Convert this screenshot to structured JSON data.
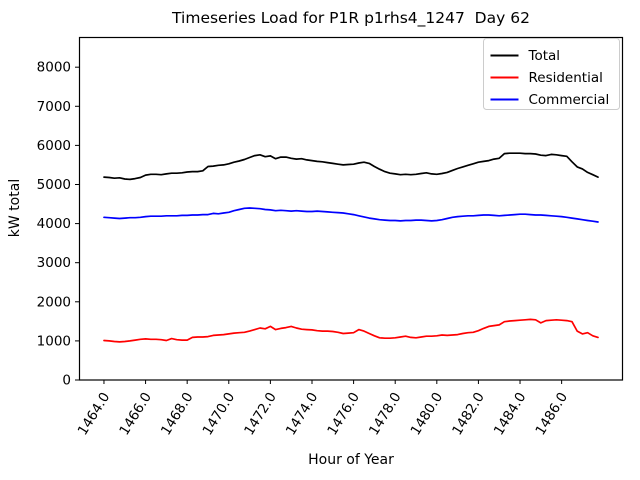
{
  "chart_data": {
    "type": "line",
    "title": "Timeseries Load for P1R p1rhs4_1247  Day 62",
    "xlabel": "Hour of Year",
    "ylabel": "kW total",
    "grid": false,
    "legend_position": "upper right",
    "xlim": [
      1462.8,
      1488.95
    ],
    "ylim": [
      0,
      8772
    ],
    "yticks": [
      0,
      1000,
      2000,
      3000,
      4000,
      5000,
      6000,
      7000,
      8000
    ],
    "ytick_labels": [
      "0",
      "1000",
      "2000",
      "3000",
      "4000",
      "5000",
      "6000",
      "7000",
      "8000"
    ],
    "xticks": [
      1464,
      1466,
      1468,
      1470,
      1472,
      1474,
      1476,
      1478,
      1480,
      1482,
      1484,
      1486
    ],
    "xtick_labels": [
      "1464.0",
      "1466.0",
      "1468.0",
      "1470.0",
      "1472.0",
      "1474.0",
      "1476.0",
      "1478.0",
      "1480.0",
      "1482.0",
      "1484.0",
      "1486.0"
    ],
    "xtick_rotation_deg": 58,
    "x_start": 1464.0,
    "x_step": 0.25,
    "series": [
      {
        "name": "Total",
        "color": "#000000",
        "values": [
          5190,
          5180,
          5160,
          5170,
          5140,
          5130,
          5150,
          5180,
          5240,
          5260,
          5260,
          5250,
          5270,
          5290,
          5290,
          5300,
          5320,
          5330,
          5330,
          5350,
          5460,
          5470,
          5490,
          5500,
          5530,
          5570,
          5600,
          5640,
          5690,
          5740,
          5760,
          5710,
          5730,
          5660,
          5700,
          5700,
          5670,
          5650,
          5660,
          5630,
          5610,
          5590,
          5580,
          5560,
          5540,
          5520,
          5500,
          5510,
          5520,
          5550,
          5570,
          5540,
          5460,
          5390,
          5330,
          5290,
          5270,
          5250,
          5260,
          5250,
          5260,
          5280,
          5300,
          5270,
          5260,
          5280,
          5310,
          5360,
          5410,
          5450,
          5490,
          5530,
          5570,
          5590,
          5610,
          5650,
          5670,
          5790,
          5800,
          5800,
          5800,
          5790,
          5790,
          5780,
          5750,
          5740,
          5770,
          5760,
          5740,
          5720,
          5580,
          5450,
          5400,
          5310,
          5250,
          5190
        ]
      },
      {
        "name": "Residential",
        "color": "#ff0000",
        "values": [
          1010,
          1000,
          985,
          975,
          985,
          1000,
          1020,
          1040,
          1050,
          1040,
          1040,
          1030,
          1010,
          1060,
          1030,
          1020,
          1020,
          1090,
          1100,
          1100,
          1110,
          1140,
          1150,
          1160,
          1180,
          1200,
          1210,
          1220,
          1250,
          1290,
          1330,
          1310,
          1370,
          1290,
          1320,
          1340,
          1370,
          1330,
          1300,
          1290,
          1280,
          1260,
          1250,
          1250,
          1240,
          1220,
          1190,
          1200,
          1210,
          1290,
          1250,
          1190,
          1130,
          1080,
          1070,
          1070,
          1080,
          1100,
          1120,
          1090,
          1080,
          1100,
          1120,
          1120,
          1130,
          1150,
          1140,
          1150,
          1160,
          1190,
          1210,
          1220,
          1260,
          1320,
          1370,
          1390,
          1410,
          1490,
          1510,
          1520,
          1530,
          1540,
          1550,
          1540,
          1460,
          1520,
          1530,
          1540,
          1530,
          1520,
          1490,
          1250,
          1180,
          1210,
          1130,
          1090
        ]
      },
      {
        "name": "Commercial",
        "color": "#0000ff",
        "values": [
          4160,
          4150,
          4140,
          4130,
          4140,
          4150,
          4150,
          4160,
          4180,
          4190,
          4190,
          4190,
          4200,
          4200,
          4200,
          4210,
          4210,
          4220,
          4220,
          4230,
          4230,
          4260,
          4250,
          4270,
          4290,
          4330,
          4360,
          4390,
          4400,
          4390,
          4380,
          4360,
          4350,
          4330,
          4340,
          4330,
          4320,
          4330,
          4320,
          4310,
          4310,
          4320,
          4310,
          4300,
          4290,
          4280,
          4270,
          4250,
          4230,
          4200,
          4170,
          4140,
          4120,
          4100,
          4090,
          4080,
          4080,
          4070,
          4080,
          4080,
          4090,
          4090,
          4080,
          4070,
          4080,
          4100,
          4130,
          4160,
          4180,
          4190,
          4200,
          4200,
          4210,
          4220,
          4220,
          4210,
          4200,
          4210,
          4220,
          4230,
          4240,
          4240,
          4230,
          4220,
          4220,
          4210,
          4200,
          4190,
          4180,
          4160,
          4140,
          4120,
          4100,
          4080,
          4060,
          4040
        ]
      }
    ]
  }
}
